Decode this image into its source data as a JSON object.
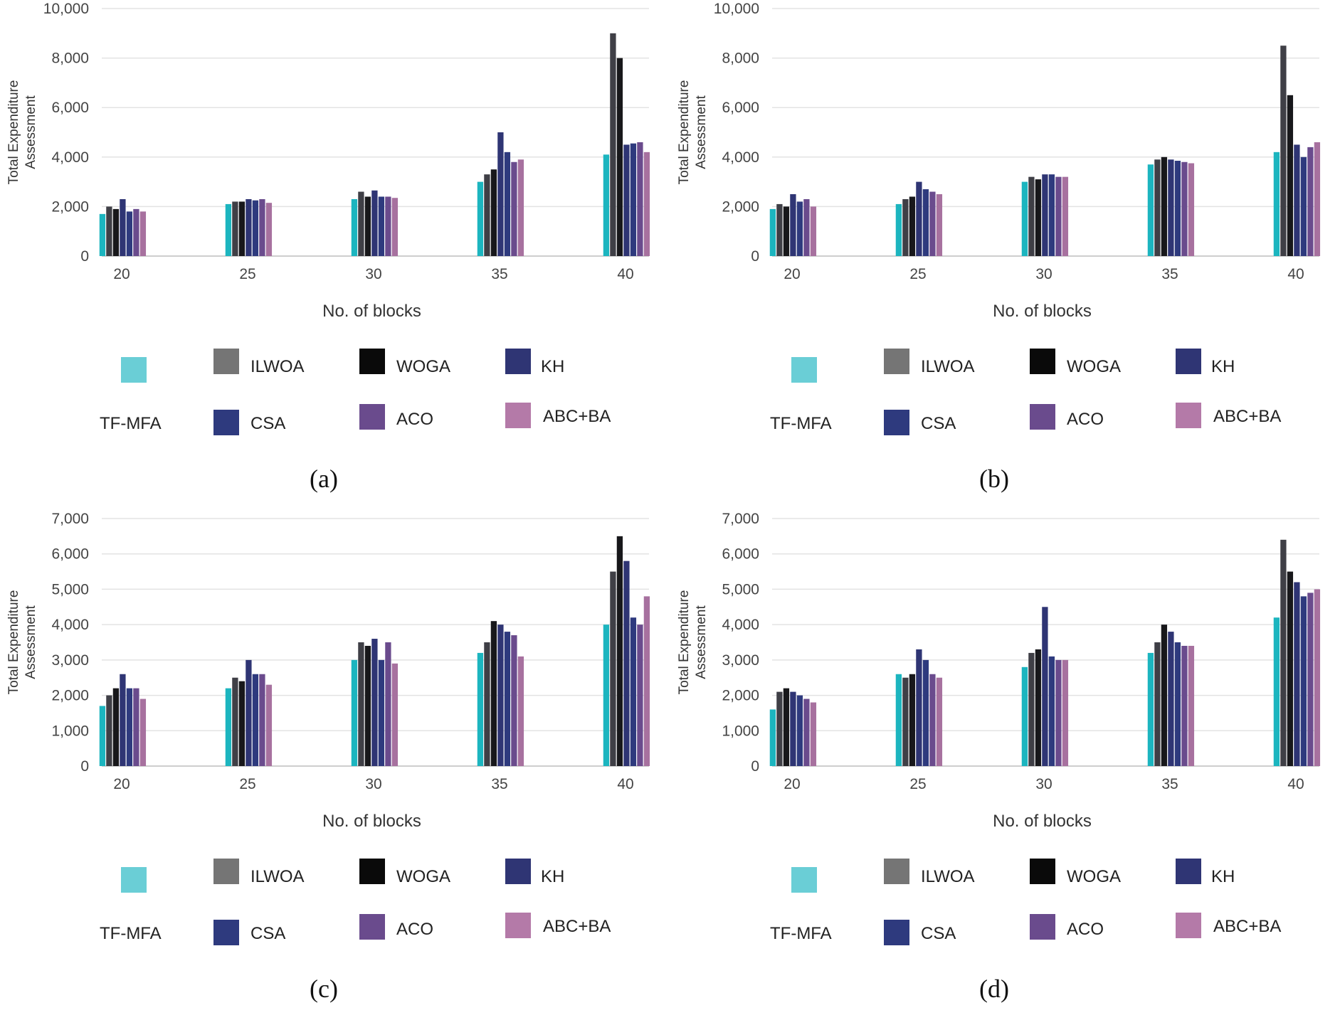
{
  "ylabel_line1": "Total Expenditure",
  "ylabel_line2": "Assessment",
  "series_colors": {
    "TF-MFA": "#1CB5BF",
    "ILWOA": "#3F3F46",
    "WOGA": "#18181B",
    "KH": "#2F3574",
    "CSA": "#2E3A7E",
    "ACO": "#6A4B8D",
    "ABC+BA": "#A7719F"
  },
  "legend_colors": {
    "TF-MFA": "#6ACED6",
    "ILWOA": "#757575",
    "WOGA": "#0A0A0A",
    "KH": "#2F3574",
    "CSA": "#2E3A7E",
    "ACO": "#6A4B8D",
    "ABC+BA": "#B47AA8"
  },
  "chart_data": [
    {
      "panel": "a",
      "caption": "(a)",
      "type": "bar",
      "xlabel": "No. of blocks",
      "ylabel": "Total Expenditure Assessment",
      "categories": [
        "20",
        "25",
        "30",
        "35",
        "40"
      ],
      "ylim": [
        0,
        10000
      ],
      "yticks": [
        "0",
        "2,000",
        "4,000",
        "6,000",
        "8,000",
        "10,000"
      ],
      "series": [
        {
          "name": "TF-MFA",
          "values": [
            1700,
            2100,
            2300,
            3000,
            4100
          ]
        },
        {
          "name": "ILWOA",
          "values": [
            2000,
            2200,
            2600,
            3300,
            9000
          ]
        },
        {
          "name": "WOGA",
          "values": [
            1900,
            2200,
            2400,
            3500,
            8000
          ]
        },
        {
          "name": "KH",
          "values": [
            2300,
            2300,
            2650,
            5000,
            4500
          ]
        },
        {
          "name": "CSA",
          "values": [
            1800,
            2250,
            2400,
            4200,
            4550
          ]
        },
        {
          "name": "ACO",
          "values": [
            1900,
            2300,
            2400,
            3800,
            4600
          ]
        },
        {
          "name": "ABC+BA",
          "values": [
            1800,
            2150,
            2350,
            3900,
            4200
          ]
        }
      ]
    },
    {
      "panel": "b",
      "caption": "(b)",
      "type": "bar",
      "xlabel": "No. of blocks",
      "ylabel": "Total Expenditure Assessment",
      "categories": [
        "20",
        "25",
        "30",
        "35",
        "40"
      ],
      "ylim": [
        0,
        10000
      ],
      "yticks": [
        "0",
        "2,000",
        "4,000",
        "6,000",
        "8,000",
        "10,000"
      ],
      "series": [
        {
          "name": "TF-MFA",
          "values": [
            1900,
            2100,
            3000,
            3700,
            4200
          ]
        },
        {
          "name": "ILWOA",
          "values": [
            2100,
            2300,
            3200,
            3900,
            8500
          ]
        },
        {
          "name": "WOGA",
          "values": [
            2000,
            2400,
            3100,
            4000,
            6500
          ]
        },
        {
          "name": "KH",
          "values": [
            2500,
            3000,
            3300,
            3900,
            4500
          ]
        },
        {
          "name": "CSA",
          "values": [
            2200,
            2700,
            3300,
            3850,
            4000
          ]
        },
        {
          "name": "ACO",
          "values": [
            2300,
            2600,
            3200,
            3800,
            4400
          ]
        },
        {
          "name": "ABC+BA",
          "values": [
            2000,
            2500,
            3200,
            3750,
            4600
          ]
        }
      ]
    },
    {
      "panel": "c",
      "caption": "(c)",
      "type": "bar",
      "xlabel": "No. of blocks",
      "ylabel": "Total Expenditure Assessment",
      "categories": [
        "20",
        "25",
        "30",
        "35",
        "40"
      ],
      "ylim": [
        0,
        7000
      ],
      "yticks": [
        "0",
        "1,000",
        "2,000",
        "3,000",
        "4,000",
        "5,000",
        "6,000",
        "7,000"
      ],
      "series": [
        {
          "name": "TF-MFA",
          "values": [
            1700,
            2200,
            3000,
            3200,
            4000
          ]
        },
        {
          "name": "ILWOA",
          "values": [
            2000,
            2500,
            3500,
            3500,
            5500
          ]
        },
        {
          "name": "WOGA",
          "values": [
            2200,
            2400,
            3400,
            4100,
            6500
          ]
        },
        {
          "name": "KH",
          "values": [
            2600,
            3000,
            3600,
            4000,
            5800
          ]
        },
        {
          "name": "CSA",
          "values": [
            2200,
            2600,
            3000,
            3800,
            4200
          ]
        },
        {
          "name": "ACO",
          "values": [
            2200,
            2600,
            3500,
            3700,
            4000
          ]
        },
        {
          "name": "ABC+BA",
          "values": [
            1900,
            2300,
            2900,
            3100,
            4800
          ]
        }
      ]
    },
    {
      "panel": "d",
      "caption": "(d)",
      "type": "bar",
      "xlabel": "No. of blocks",
      "ylabel": "Total Expenditure Assessment",
      "categories": [
        "20",
        "25",
        "30",
        "35",
        "40"
      ],
      "ylim": [
        0,
        7000
      ],
      "yticks": [
        "0",
        "1,000",
        "2,000",
        "3,000",
        "4,000",
        "5,000",
        "6,000",
        "7,000"
      ],
      "series": [
        {
          "name": "TF-MFA",
          "values": [
            1600,
            2600,
            2800,
            3200,
            4200
          ]
        },
        {
          "name": "ILWOA",
          "values": [
            2100,
            2500,
            3200,
            3500,
            6400
          ]
        },
        {
          "name": "WOGA",
          "values": [
            2200,
            2600,
            3300,
            4000,
            5500
          ]
        },
        {
          "name": "KH",
          "values": [
            2100,
            3300,
            4500,
            3800,
            5200
          ]
        },
        {
          "name": "CSA",
          "values": [
            2000,
            3000,
            3100,
            3500,
            4800
          ]
        },
        {
          "name": "ACO",
          "values": [
            1900,
            2600,
            3000,
            3400,
            4900
          ]
        },
        {
          "name": "ABC+BA",
          "values": [
            1800,
            2500,
            3000,
            3400,
            5000
          ]
        }
      ]
    }
  ]
}
